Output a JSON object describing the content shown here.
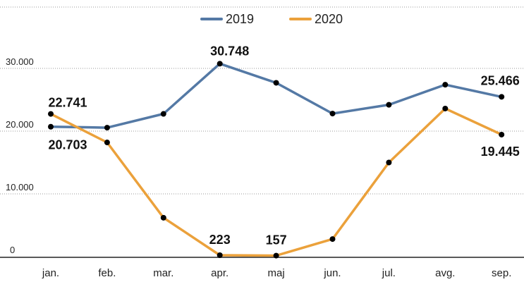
{
  "chart_data": {
    "type": "line",
    "title": "",
    "xlabel": "",
    "ylabel": "",
    "categories": [
      "jan.",
      "feb.",
      "mar.",
      "apr.",
      "maj",
      "jun.",
      "jul.",
      "avg.",
      "sep."
    ],
    "ylim": [
      0,
      35000
    ],
    "yticks": [
      0,
      10000,
      20000,
      30000
    ],
    "ytick_labels": [
      "0",
      "10.000",
      "20.000",
      "30.000"
    ],
    "grid": true,
    "legend_position": "top-center",
    "series": [
      {
        "name": "2019",
        "color": "#5479a5",
        "values": [
          20703,
          20550,
          22750,
          30748,
          27700,
          22800,
          24200,
          27400,
          25466
        ]
      },
      {
        "name": "2020",
        "color": "#eba13b",
        "values": [
          22741,
          18200,
          6200,
          223,
          157,
          2800,
          15000,
          23600,
          19445
        ]
      }
    ],
    "data_labels": [
      {
        "series": 1,
        "index": 0,
        "text": "22.741"
      },
      {
        "series": 0,
        "index": 0,
        "text": "20.703"
      },
      {
        "series": 0,
        "index": 3,
        "text": "30.748"
      },
      {
        "series": 1,
        "index": 3,
        "text": "223"
      },
      {
        "series": 1,
        "index": 4,
        "text": "157"
      },
      {
        "series": 0,
        "index": 8,
        "text": "25.466"
      },
      {
        "series": 1,
        "index": 8,
        "text": "19.445"
      }
    ]
  }
}
